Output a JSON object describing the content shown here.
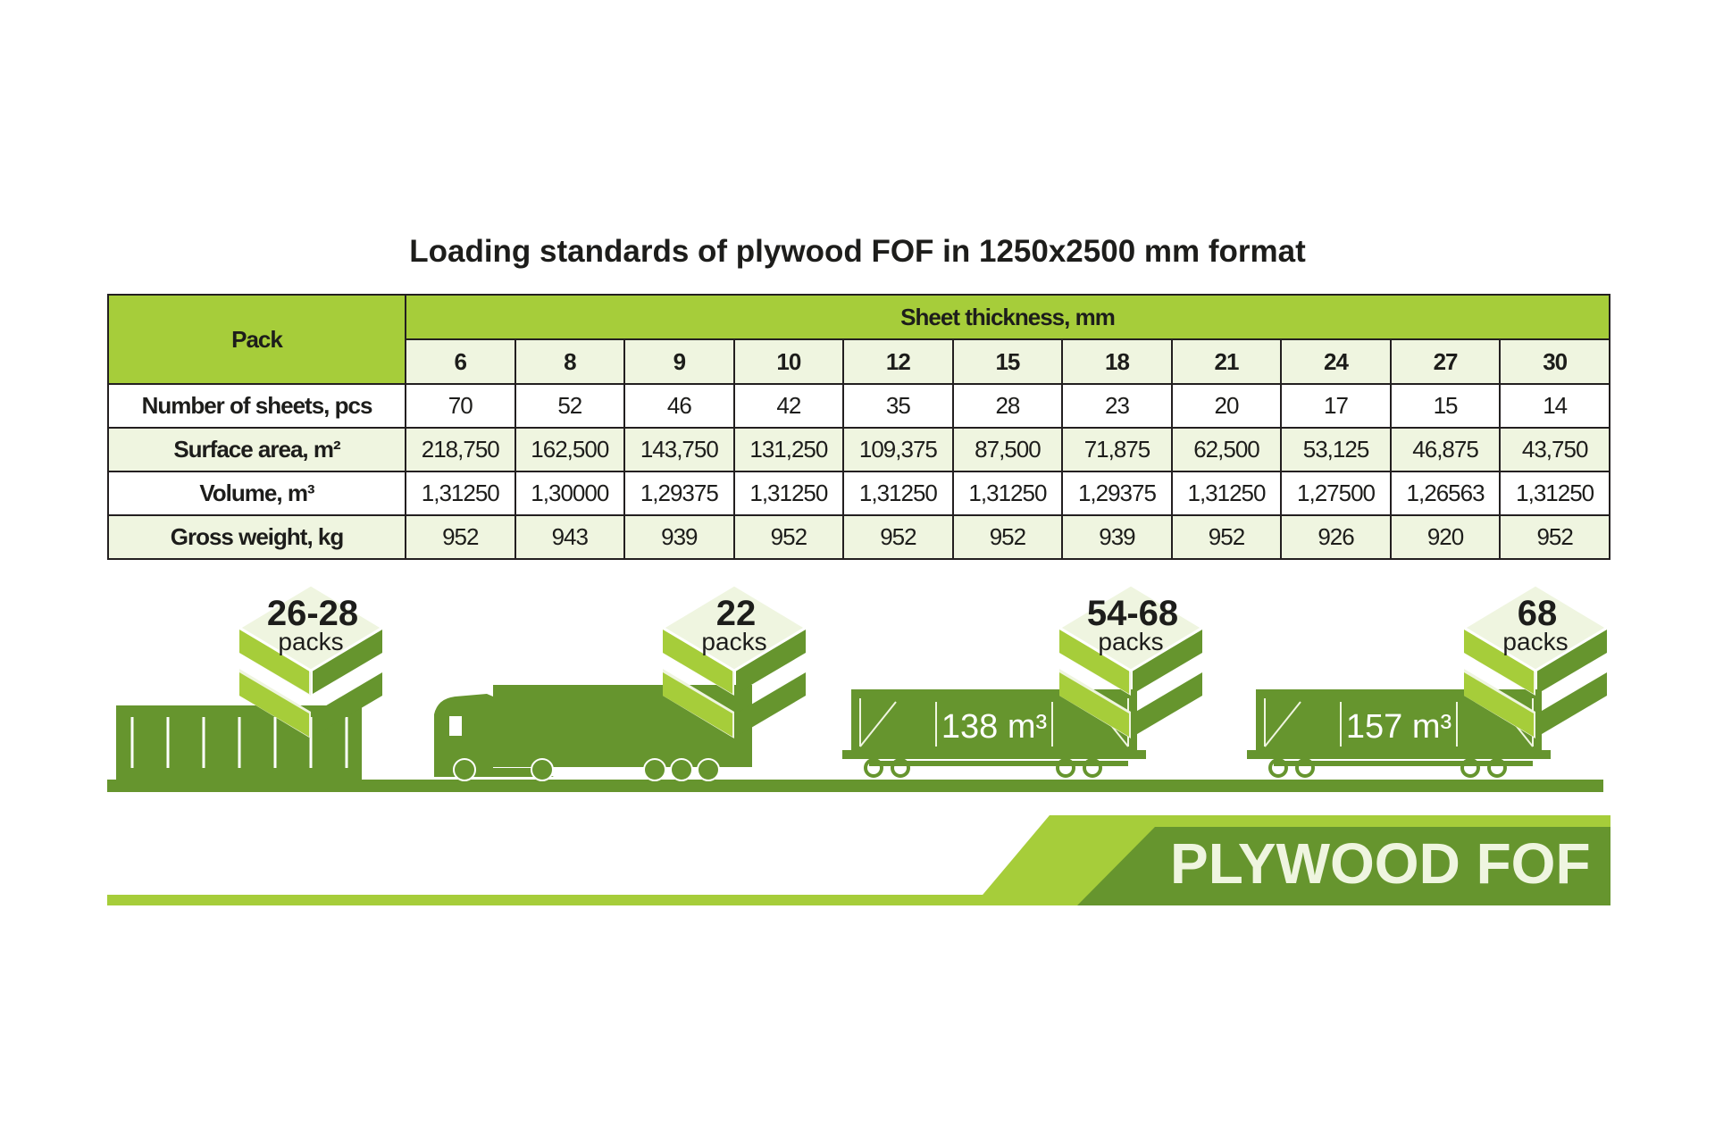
{
  "title": "Loading standards of plywood FOF in 1250x2500 mm format",
  "table": {
    "pack_header": "Pack",
    "thickness_header": "Sheet thickness, mm",
    "thicknesses": [
      "6",
      "8",
      "9",
      "10",
      "12",
      "15",
      "18",
      "21",
      "24",
      "27",
      "30"
    ],
    "rows": [
      {
        "label": "Number of sheets, pcs",
        "values": [
          "70",
          "52",
          "46",
          "42",
          "35",
          "28",
          "23",
          "20",
          "17",
          "15",
          "14"
        ]
      },
      {
        "label": "Surface area, m²",
        "values": [
          "218,750",
          "162,500",
          "143,750",
          "131,250",
          "109,375",
          "87,500",
          "71,875",
          "62,500",
          "53,125",
          "46,875",
          "43,750"
        ]
      },
      {
        "label": "Volume, m³",
        "values": [
          "1,31250",
          "1,30000",
          "1,29375",
          "1,31250",
          "1,31250",
          "1,31250",
          "1,29375",
          "1,31250",
          "1,27500",
          "1,26563",
          "1,31250"
        ]
      },
      {
        "label": "Gross weight, kg",
        "values": [
          "952",
          "943",
          "939",
          "952",
          "952",
          "952",
          "939",
          "952",
          "926",
          "920",
          "952"
        ]
      }
    ]
  },
  "transport": [
    {
      "type": "container-icon",
      "count": "26-28",
      "unit": "packs"
    },
    {
      "type": "truck-icon",
      "count": "22",
      "unit": "packs"
    },
    {
      "type": "railcar-icon",
      "count": "54-68",
      "unit": "packs",
      "volume": "138 m³"
    },
    {
      "type": "railcar-icon",
      "count": "68",
      "unit": "packs",
      "volume": "157 m³"
    }
  ],
  "brand": "PLYWOOD FOF",
  "colors": {
    "dark_green": "#66952e",
    "light_green": "#a6cd3a",
    "pale_green": "#eff5e0",
    "text": "#1d1d1b"
  }
}
